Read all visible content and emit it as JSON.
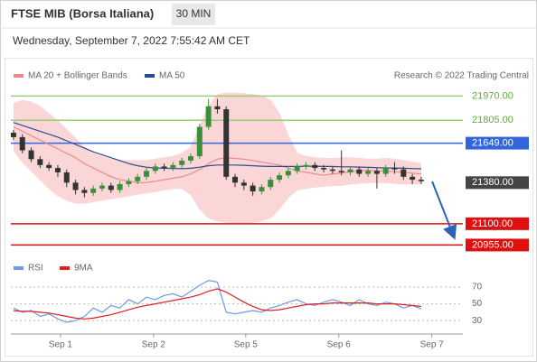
{
  "header": {
    "title": "FTSE MIB (Borsa Italiana)",
    "timeframe": "30 MIN",
    "date": "Wednesday, September 7, 2022 7:55:42 AM CET"
  },
  "chart_data": [
    {
      "type": "candlestick",
      "source": "Research © 2022 Trading Central",
      "up_color": "#3a8f3a",
      "down_color": "#333333",
      "open": [
        21720,
        21690,
        21600,
        21540,
        21500,
        21480,
        21450,
        21380,
        21330,
        21310,
        21340,
        21360,
        21330,
        21370,
        21390,
        21420,
        21460,
        21490,
        21480,
        21500,
        21530,
        21560,
        21760,
        21900,
        21880,
        21420,
        21380,
        21360,
        21320,
        21350,
        21400,
        21430,
        21460,
        21490,
        21500,
        21480,
        21470,
        21460,
        21450,
        21470,
        21440,
        21460,
        21440,
        21480,
        21470,
        21420,
        21400
      ],
      "high": [
        21740,
        21710,
        21620,
        21560,
        21520,
        21500,
        21470,
        21400,
        21350,
        21360,
        21380,
        21380,
        21390,
        21410,
        21440,
        21480,
        21510,
        21510,
        21520,
        21550,
        21580,
        21780,
        21950,
        21950,
        21900,
        21440,
        21400,
        21380,
        21370,
        21420,
        21450,
        21480,
        21510,
        21520,
        21520,
        21500,
        21490,
        21600,
        21490,
        21490,
        21480,
        21480,
        21500,
        21520,
        21490,
        21440,
        21420
      ],
      "low": [
        21670,
        21580,
        21520,
        21480,
        21460,
        21420,
        21350,
        21300,
        21280,
        21290,
        21320,
        21310,
        21310,
        21350,
        21370,
        21400,
        21440,
        21460,
        21460,
        21480,
        21510,
        21540,
        21740,
        21850,
        21400,
        21350,
        21330,
        21290,
        21300,
        21330,
        21380,
        21410,
        21440,
        21470,
        21460,
        21450,
        21440,
        21430,
        21430,
        21420,
        21420,
        21340,
        21420,
        21440,
        21400,
        21370,
        21370
      ],
      "close": [
        21690,
        21600,
        21540,
        21500,
        21480,
        21450,
        21380,
        21330,
        21310,
        21340,
        21360,
        21330,
        21370,
        21390,
        21420,
        21460,
        21490,
        21480,
        21500,
        21530,
        21560,
        21760,
        21900,
        21880,
        21420,
        21380,
        21360,
        21320,
        21350,
        21400,
        21430,
        21460,
        21490,
        21500,
        21480,
        21470,
        21460,
        21450,
        21470,
        21440,
        21460,
        21440,
        21480,
        21470,
        21420,
        21400,
        21390
      ],
      "series": [
        {
          "name": "MA 20 + Bollinger Bands",
          "color": "#ee8a8a",
          "band_color": "#fbd6d6",
          "values": [
            21760,
            21730,
            21700,
            21670,
            21640,
            21610,
            21580,
            21550,
            21510,
            21480,
            21450,
            21420,
            21400,
            21390,
            21380,
            21380,
            21390,
            21400,
            21410,
            21420,
            21440,
            21470,
            21510,
            21540,
            21550,
            21545,
            21540,
            21530,
            21520,
            21510,
            21500,
            21480,
            21460,
            21450,
            21440,
            21430,
            21440,
            21445,
            21455,
            21460,
            21465,
            21460,
            21460,
            21455,
            21450,
            21445,
            21440
          ],
          "upper": [
            21920,
            21940,
            21930,
            21900,
            21850,
            21800,
            21740,
            21680,
            21620,
            21580,
            21560,
            21540,
            21530,
            21530,
            21530,
            21530,
            21540,
            21550,
            21560,
            21580,
            21620,
            21760,
            21900,
            21980,
            21990,
            21990,
            21985,
            21980,
            21970,
            21940,
            21850,
            21700,
            21580,
            21560,
            21550,
            21545,
            21545,
            21550,
            21550,
            21545,
            21540,
            21540,
            21545,
            21540,
            21530,
            21520,
            21510
          ],
          "lower": [
            21600,
            21520,
            21460,
            21400,
            21340,
            21290,
            21260,
            21240,
            21240,
            21250,
            21260,
            21270,
            21280,
            21290,
            21300,
            21310,
            21320,
            21330,
            21340,
            21340,
            21300,
            21200,
            21140,
            21120,
            21110,
            21100,
            21100,
            21110,
            21120,
            21140,
            21200,
            21280,
            21330,
            21340,
            21350,
            21355,
            21360,
            21360,
            21370,
            21375,
            21380,
            21380,
            21380,
            21375,
            21370,
            21370,
            21370
          ]
        },
        {
          "name": "MA 50",
          "color": "#2a4d8f",
          "values": [
            21790,
            21770,
            21750,
            21730,
            21710,
            21690,
            21665,
            21640,
            21615,
            21590,
            21570,
            21550,
            21530,
            21510,
            21495,
            21485,
            21480,
            21478,
            21476,
            21475,
            21478,
            21485,
            21495,
            21500,
            21500,
            21500,
            21498,
            21495,
            21492,
            21490,
            21490,
            21490,
            21490,
            21492,
            21492,
            21490,
            21490,
            21488,
            21488,
            21486,
            21484,
            21482,
            21480,
            21480,
            21478,
            21476,
            21474
          ]
        }
      ],
      "levels": [
        {
          "value": 21970,
          "label": "21970.00",
          "color": "#9ccc7a",
          "text_color": "#5cae3a",
          "boxed": false,
          "line": true
        },
        {
          "value": 21805,
          "label": "21805.00",
          "color": "#9ccc7a",
          "text_color": "#5cae3a",
          "boxed": false,
          "line": true
        },
        {
          "value": 21649,
          "label": "21649.00",
          "color": "#3366dd",
          "text_color": "#ffffff",
          "boxed": true,
          "line": true
        },
        {
          "value": 21380,
          "label": "21380.00",
          "color": "#444444",
          "text_color": "#ffffff",
          "boxed": true,
          "line": false
        },
        {
          "value": 21100,
          "label": "21100.00",
          "color": "#e01010",
          "text_color": "#ffffff",
          "boxed": true,
          "line": true
        },
        {
          "value": 20955,
          "label": "20955.00",
          "color": "#e01010",
          "text_color": "#ffffff",
          "boxed": true,
          "line": true
        }
      ],
      "xlim": [
        -0.3,
        50.7
      ],
      "ylim": [
        20890,
        22040
      ],
      "xticks": [
        {
          "value": 5.3,
          "label": "Sep 1"
        },
        {
          "value": 15.8,
          "label": "Sep 2"
        },
        {
          "value": 26.2,
          "label": "Sep 5"
        },
        {
          "value": 36.7,
          "label": "Sep 6"
        },
        {
          "value": 47.2,
          "label": "Sep 7"
        }
      ]
    },
    {
      "type": "line",
      "series": [
        {
          "name": "RSI",
          "color": "#6c9be6",
          "values": [
            45,
            40,
            42,
            35,
            38,
            32,
            28,
            30,
            35,
            45,
            40,
            48,
            45,
            55,
            50,
            58,
            55,
            60,
            62,
            58,
            65,
            72,
            78,
            76,
            40,
            38,
            40,
            42,
            40,
            45,
            48,
            52,
            55,
            50,
            48,
            52,
            55,
            52,
            48,
            55,
            50,
            48,
            52,
            50,
            45,
            48,
            44
          ]
        },
        {
          "name": "9MA",
          "color": "#e02020",
          "values": [
            42,
            41,
            41,
            40,
            39,
            37,
            35,
            33,
            32,
            33,
            35,
            37,
            40,
            43,
            46,
            48,
            50,
            52,
            54,
            56,
            58,
            61,
            65,
            68,
            64,
            58,
            52,
            47,
            43,
            42,
            43,
            45,
            47,
            49,
            50,
            50,
            51,
            51,
            51,
            51,
            51,
            50,
            50,
            50,
            49,
            48,
            47
          ]
        }
      ],
      "xlim": [
        -0.3,
        50.7
      ],
      "ylim": [
        14,
        84
      ],
      "yticks": [
        30,
        50,
        70
      ],
      "grid": true
    }
  ]
}
